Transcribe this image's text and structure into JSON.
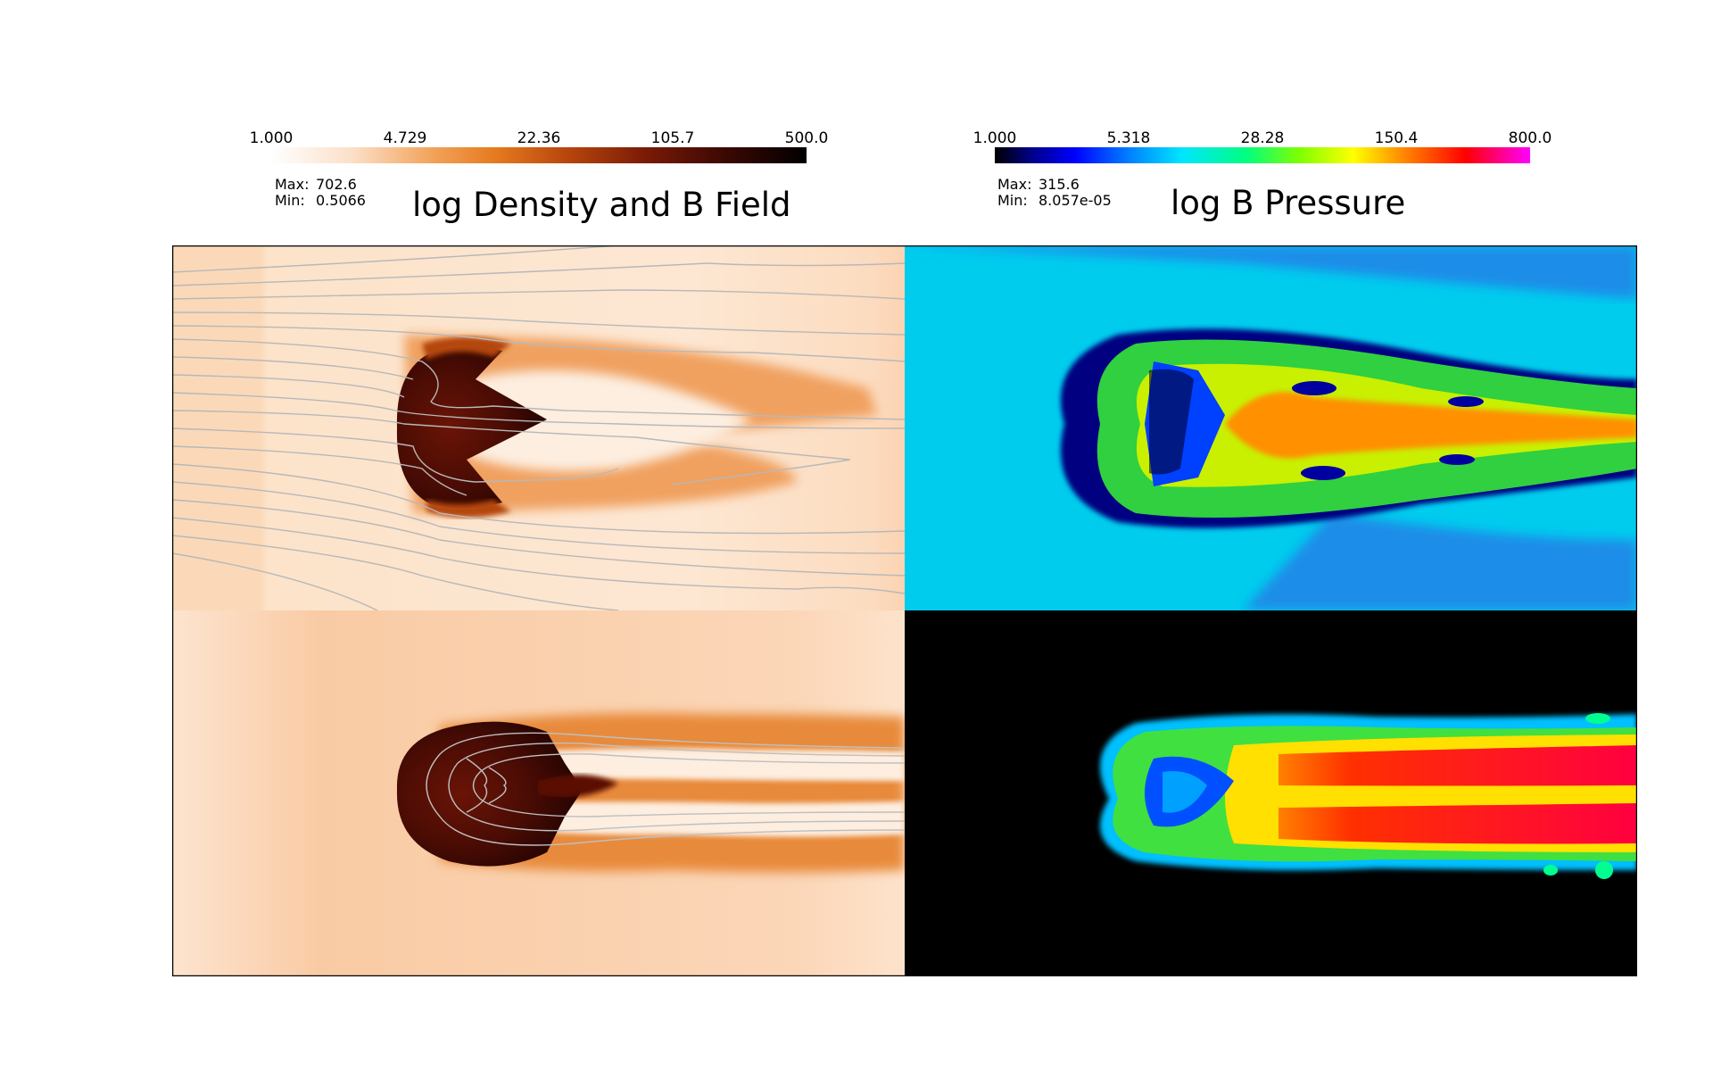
{
  "left_panel": {
    "title": "log Density and B Field",
    "colorbar": {
      "ticks": [
        "1.000",
        "4.729",
        "22.36",
        "105.7",
        "500.0"
      ],
      "colormap": [
        "#ffffff",
        "#fbe0c8",
        "#f3a35b",
        "#e67a1e",
        "#b9470d",
        "#7a1a06",
        "#3a0803",
        "#000000"
      ]
    },
    "stats": {
      "max_label": "Max:",
      "max": "702.6",
      "min_label": "Min:",
      "min": "0.5066"
    }
  },
  "right_panel": {
    "title": "log B Pressure",
    "colorbar": {
      "ticks": [
        "1.000",
        "5.318",
        "28.28",
        "150.4",
        "800.0"
      ],
      "colormap": [
        "#000000",
        "#00008b",
        "#0000ff",
        "#0080ff",
        "#00e5ff",
        "#00ff80",
        "#80ff00",
        "#ffff00",
        "#ff8000",
        "#ff0000",
        "#ff00ff"
      ]
    },
    "stats": {
      "max_label": "Max:",
      "max": "315.6",
      "min_label": "Min:",
      "min": "8.057e-05"
    }
  }
}
